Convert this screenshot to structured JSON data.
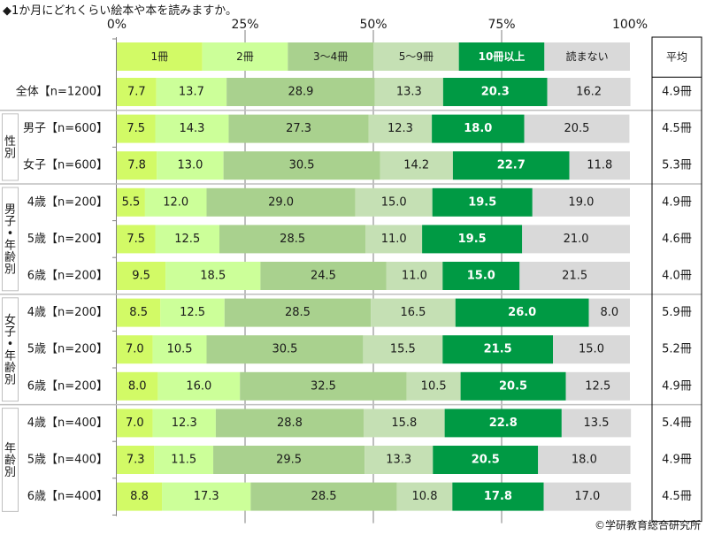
{
  "title": "◆1か月にどれくらい絵本や本を読みますか。",
  "credit": "©学研教育総合研究所",
  "chart_data": {
    "type": "bar",
    "orientation": "horizontal-stacked-100",
    "title": "◆1か月にどれくらい絵本や本を読みますか。",
    "xlabel": "",
    "ylabel": "",
    "xlim": [
      0,
      100
    ],
    "x_ticks": [
      "0%",
      "25%",
      "50%",
      "75%",
      "100%"
    ],
    "grid": "vertical at 25% intervals",
    "legend_placement": "top",
    "series": [
      {
        "name": "1冊",
        "color": "#d2fa66"
      },
      {
        "name": "2冊",
        "color": "#ccff99"
      },
      {
        "name": "3～4冊",
        "color": "#a9d18e"
      },
      {
        "name": "5～9冊",
        "color": "#c5e0b4"
      },
      {
        "name": "10冊以上",
        "color": "#009a44"
      },
      {
        "name": "読まない",
        "color": "#d9d9d9"
      }
    ],
    "average_header": "平均",
    "groups": [
      {
        "label": "",
        "rows": [
          0
        ]
      },
      {
        "label": "性別",
        "rows": [
          1,
          2
        ]
      },
      {
        "label": "男子・年齢別",
        "rows": [
          3,
          4,
          5
        ]
      },
      {
        "label": "女子・年齢別",
        "rows": [
          6,
          7,
          8
        ]
      },
      {
        "label": "年齢別",
        "rows": [
          9,
          10,
          11
        ]
      }
    ],
    "rows": [
      {
        "label": "全体【n=1200】",
        "values": [
          7.7,
          13.7,
          28.9,
          13.3,
          20.3,
          16.2
        ],
        "average": "4.9冊"
      },
      {
        "label": "男子【n=600】",
        "values": [
          7.5,
          14.3,
          27.3,
          12.3,
          18.0,
          20.5
        ],
        "average": "4.5冊"
      },
      {
        "label": "女子【n=600】",
        "values": [
          7.8,
          13.0,
          30.5,
          14.2,
          22.7,
          11.8
        ],
        "average": "5.3冊"
      },
      {
        "label": "4歳【n=200】",
        "values": [
          5.5,
          12.0,
          29.0,
          15.0,
          19.5,
          19.0
        ],
        "average": "4.9冊"
      },
      {
        "label": "5歳【n=200】",
        "values": [
          7.5,
          12.5,
          28.5,
          11.0,
          19.5,
          21.0
        ],
        "average": "4.6冊"
      },
      {
        "label": "6歳【n=200】",
        "values": [
          9.5,
          18.5,
          24.5,
          11.0,
          15.0,
          21.5
        ],
        "average": "4.0冊"
      },
      {
        "label": "4歳【n=200】",
        "values": [
          8.5,
          12.5,
          28.5,
          16.5,
          26.0,
          8.0
        ],
        "average": "5.9冊"
      },
      {
        "label": "5歳【n=200】",
        "values": [
          7.0,
          10.5,
          30.5,
          15.5,
          21.5,
          15.0
        ],
        "average": "5.2冊"
      },
      {
        "label": "6歳【n=200】",
        "values": [
          8.0,
          16.0,
          32.5,
          10.5,
          20.5,
          12.5
        ],
        "average": "4.9冊"
      },
      {
        "label": "4歳【n=400】",
        "values": [
          7.0,
          12.3,
          28.8,
          15.8,
          22.8,
          13.5
        ],
        "average": "5.4冊"
      },
      {
        "label": "5歳【n=400】",
        "values": [
          7.3,
          11.5,
          29.5,
          13.3,
          20.5,
          18.0
        ],
        "average": "4.9冊"
      },
      {
        "label": "6歳【n=400】",
        "values": [
          8.8,
          17.3,
          28.5,
          10.8,
          17.8,
          17.0
        ],
        "average": "4.5冊"
      }
    ]
  }
}
